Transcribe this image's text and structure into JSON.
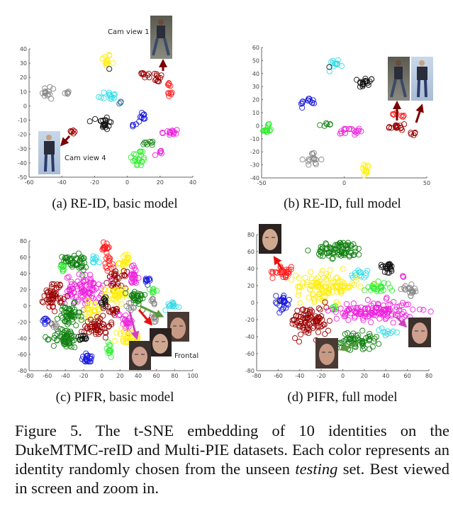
{
  "captions": {
    "a": "(a) RE-ID, basic model",
    "b": "(b) RE-ID, full model",
    "c": "(c) PIFR, basic model",
    "d": "(d) PIFR, full model"
  },
  "figure_caption": {
    "part1": "Figure 5. The t-SNE embedding of 10 identities on the DukeMTMC-reID and Multi-PIE datasets. Each color represents an identity randomly chosen from the unseen ",
    "italic": "testing",
    "part2": " set. Best viewed in screen and zoom in."
  },
  "annotations": {
    "cam_view_1": "Cam view 1",
    "cam_view_4": "Cam view 4",
    "frontal": "Frontal"
  },
  "colors": {
    "red": "#ff2020",
    "darkred": "#9b0000",
    "black": "#111111",
    "gray": "#888888",
    "cyan": "#33dde8",
    "yellow": "#ffee11",
    "blue": "#1a1ae0",
    "magenta": "#ee22dd",
    "darkgreen": "#108010",
    "lime": "#33ee33",
    "steelblue": "#2a6f9a"
  },
  "chart_data": [
    {
      "id": "a",
      "type": "scatter",
      "title": "RE-ID, basic model",
      "xlim": [
        -60,
        40
      ],
      "ylim": [
        -50,
        40
      ],
      "xticks": [
        -60,
        -40,
        -20,
        0,
        20,
        40
      ],
      "yticks": [
        -50,
        -40,
        -30,
        -20,
        -10,
        0,
        10,
        20,
        30,
        40
      ],
      "clusters": [
        {
          "color": "yellow",
          "x": -13,
          "y": 32,
          "sx": 1.5,
          "sy": 2.5,
          "n": 12
        },
        {
          "color": "black",
          "x": -11,
          "y": 26,
          "sx": 0,
          "sy": 0,
          "n": 1
        },
        {
          "color": "darkred",
          "x": 10,
          "y": 22,
          "sx": 2.5,
          "sy": 1.2,
          "n": 8
        },
        {
          "color": "darkred",
          "x": 18,
          "y": 19,
          "sx": 2.5,
          "sy": 2.5,
          "n": 12
        },
        {
          "color": "red",
          "x": 26,
          "y": 16,
          "sx": 0.8,
          "sy": 1.2,
          "n": 5
        },
        {
          "color": "red",
          "x": 26,
          "y": 8,
          "sx": 0.8,
          "sy": 1,
          "n": 6
        },
        {
          "color": "gray",
          "x": -47,
          "y": 9,
          "sx": 2.5,
          "sy": 2.5,
          "n": 14
        },
        {
          "color": "gray",
          "x": -37,
          "y": 9.5,
          "sx": 1.8,
          "sy": 0.6,
          "n": 5
        },
        {
          "color": "cyan",
          "x": -12,
          "y": 7,
          "sx": 3,
          "sy": 1.8,
          "n": 14
        },
        {
          "color": "steelblue",
          "x": -4,
          "y": 2,
          "sx": 0.8,
          "sy": 0.8,
          "n": 3
        },
        {
          "color": "black",
          "x": -14,
          "y": -12,
          "sx": 2.2,
          "sy": 2.5,
          "n": 22
        },
        {
          "color": "blue",
          "x": 9,
          "y": -8,
          "sx": 1.5,
          "sy": 2.2,
          "n": 11
        },
        {
          "color": "blue",
          "x": 4,
          "y": -13,
          "sx": 0.6,
          "sy": 0.8,
          "n": 4
        },
        {
          "color": "magenta",
          "x": 26,
          "y": -19,
          "sx": 3,
          "sy": 1.6,
          "n": 15
        },
        {
          "color": "magenta",
          "x": 20.5,
          "y": -32,
          "sx": 0.8,
          "sy": 1,
          "n": 5
        },
        {
          "color": "magenta",
          "x": 17,
          "y": -34.5,
          "sx": 0,
          "sy": 0,
          "n": 1
        },
        {
          "color": "darkgreen",
          "x": 13,
          "y": -26,
          "sx": 2.8,
          "sy": 0.8,
          "n": 8
        },
        {
          "color": "lime",
          "x": 7,
          "y": -37,
          "sx": 2.2,
          "sy": 3.5,
          "n": 22
        },
        {
          "color": "darkred",
          "x": -33,
          "y": -18,
          "sx": 1,
          "sy": 1,
          "n": 6
        }
      ]
    },
    {
      "id": "b",
      "type": "scatter",
      "title": "RE-ID, full model",
      "xlim": [
        -50,
        50
      ],
      "ylim": [
        -40,
        60
      ],
      "xticks": [
        -50,
        0,
        50
      ],
      "yticks": [
        -40,
        -30,
        -20,
        -10,
        0,
        10,
        20,
        30,
        40,
        50,
        60
      ],
      "clusters": [
        {
          "color": "cyan",
          "x": -5,
          "y": 48,
          "sx": 2.5,
          "sy": 1.5,
          "n": 12
        },
        {
          "color": "black",
          "x": -9,
          "y": 45,
          "sx": 0,
          "sy": 0,
          "n": 1
        },
        {
          "color": "black",
          "x": 13,
          "y": 33,
          "sx": 2.2,
          "sy": 2.2,
          "n": 18
        },
        {
          "color": "blue",
          "x": -22,
          "y": 18,
          "sx": 2.2,
          "sy": 1.8,
          "n": 14
        },
        {
          "color": "lime",
          "x": -47,
          "y": -3,
          "sx": 1.8,
          "sy": 1.8,
          "n": 16
        },
        {
          "color": "darkgreen",
          "x": -11,
          "y": 1,
          "sx": 1.5,
          "sy": 0.6,
          "n": 6
        },
        {
          "color": "magenta",
          "x": 5,
          "y": -4,
          "sx": 2.2,
          "sy": 1.5,
          "n": 14
        },
        {
          "color": "magenta",
          "x": -2,
          "y": -5,
          "sx": 1.5,
          "sy": 0.8,
          "n": 5
        },
        {
          "color": "darkred",
          "x": 32,
          "y": -1,
          "sx": 2.8,
          "sy": 2.2,
          "n": 16
        },
        {
          "color": "red",
          "x": 31,
          "y": 9,
          "sx": 0.8,
          "sy": 0.8,
          "n": 4
        },
        {
          "color": "red",
          "x": 36,
          "y": 8,
          "sx": 0.8,
          "sy": 0.8,
          "n": 4
        },
        {
          "color": "darkred",
          "x": 42,
          "y": -6,
          "sx": 0.8,
          "sy": 1.5,
          "n": 5
        },
        {
          "color": "gray",
          "x": -19,
          "y": -26,
          "sx": 2.5,
          "sy": 2.5,
          "n": 16
        },
        {
          "color": "yellow",
          "x": 13,
          "y": -33,
          "sx": 1.3,
          "sy": 2.2,
          "n": 12
        }
      ]
    },
    {
      "id": "c",
      "type": "scatter",
      "title": "PIFR, basic model",
      "xlim": [
        -80,
        100
      ],
      "ylim": [
        -80,
        80
      ],
      "xticks": [
        -80,
        -60,
        -40,
        -20,
        0,
        20,
        40,
        60,
        80,
        100
      ],
      "yticks": [
        -80,
        -60,
        -40,
        -20,
        0,
        20,
        40,
        60,
        80
      ],
      "clusters": [
        {
          "color": "red",
          "x": 4,
          "y": 72,
          "sx": 2.5,
          "sy": 3.5,
          "n": 15
        },
        {
          "color": "red",
          "x": 9,
          "y": 55,
          "sx": 2.5,
          "sy": 6,
          "n": 15
        },
        {
          "color": "darkgreen",
          "x": -38,
          "y": 56,
          "sx": 4,
          "sy": 3,
          "n": 22
        },
        {
          "color": "darkgreen",
          "x": -25,
          "y": 52,
          "sx": 4,
          "sy": 5,
          "n": 25
        },
        {
          "color": "lime",
          "x": -43,
          "y": 46,
          "sx": 2,
          "sy": 3,
          "n": 10
        },
        {
          "color": "cyan",
          "x": -8,
          "y": 57,
          "sx": 1.8,
          "sy": 3,
          "n": 8
        },
        {
          "color": "yellow",
          "x": 25,
          "y": 54,
          "sx": 3,
          "sy": 5,
          "n": 22
        },
        {
          "color": "darkred",
          "x": 17,
          "y": 32,
          "sx": 5,
          "sy": 5,
          "n": 30
        },
        {
          "color": "magenta",
          "x": 35,
          "y": 36,
          "sx": 3,
          "sy": 7,
          "n": 25
        },
        {
          "color": "blue",
          "x": 51,
          "y": 30,
          "sx": 2.5,
          "sy": 2.5,
          "n": 10
        },
        {
          "color": "magenta",
          "x": -20,
          "y": 20,
          "sx": 10,
          "sy": 9,
          "n": 90
        },
        {
          "color": "darkred",
          "x": -53,
          "y": 13,
          "sx": 5,
          "sy": 9,
          "n": 50
        },
        {
          "color": "lime",
          "x": 56,
          "y": 19,
          "sx": 1.5,
          "sy": 2,
          "n": 8
        },
        {
          "color": "yellow",
          "x": 15,
          "y": 12,
          "sx": 6,
          "sy": 5,
          "n": 40
        },
        {
          "color": "darkgreen",
          "x": 38,
          "y": 10,
          "sx": 5,
          "sy": 5,
          "n": 30
        },
        {
          "color": "black",
          "x": 2,
          "y": 4,
          "sx": 3,
          "sy": 3,
          "n": 12
        },
        {
          "color": "gray",
          "x": 57,
          "y": 5,
          "sx": 2,
          "sy": 2,
          "n": 8
        },
        {
          "color": "cyan",
          "x": 77,
          "y": 1,
          "sx": 4,
          "sy": 3,
          "n": 14
        },
        {
          "color": "yellow",
          "x": -10,
          "y": -5,
          "sx": 5,
          "sy": 5,
          "n": 25
        },
        {
          "color": "darkgreen",
          "x": -36,
          "y": -13,
          "sx": 6,
          "sy": 7,
          "n": 50
        },
        {
          "color": "darkred",
          "x": 12,
          "y": -6,
          "sx": 4,
          "sy": 3,
          "n": 15
        },
        {
          "color": "magenta",
          "x": 26,
          "y": -18,
          "sx": 4,
          "sy": 6,
          "n": 20
        },
        {
          "color": "darkred",
          "x": -5,
          "y": -25,
          "sx": 7,
          "sy": 7,
          "n": 50
        },
        {
          "color": "blue",
          "x": -61,
          "y": -18,
          "sx": 2,
          "sy": 2,
          "n": 8
        },
        {
          "color": "gray",
          "x": -50,
          "y": -26,
          "sx": 2,
          "sy": 2,
          "n": 6
        },
        {
          "color": "darkgreen",
          "x": -40,
          "y": -40,
          "sx": 7,
          "sy": 6,
          "n": 60
        },
        {
          "color": "black",
          "x": -20,
          "y": -41,
          "sx": 2.5,
          "sy": 2.5,
          "n": 10
        },
        {
          "color": "yellow",
          "x": 30,
          "y": -40,
          "sx": 7,
          "sy": 6,
          "n": 35
        },
        {
          "color": "lime",
          "x": 8,
          "y": -55,
          "sx": 2,
          "sy": 5,
          "n": 12
        },
        {
          "color": "blue",
          "x": -15,
          "y": -65,
          "sx": 4,
          "sy": 3,
          "n": 20
        },
        {
          "color": "gray",
          "x": 58,
          "y": -15,
          "sx": 2.5,
          "sy": 3,
          "n": 10
        },
        {
          "color": "gray",
          "x": 32,
          "y": 0,
          "sx": 2,
          "sy": 3,
          "n": 8
        }
      ]
    },
    {
      "id": "d",
      "type": "scatter",
      "title": "PIFR, full model",
      "xlim": [
        -80,
        80
      ],
      "ylim": [
        -80,
        80
      ],
      "xticks": [
        -80,
        -60,
        -40,
        -20,
        0,
        20,
        40,
        60,
        80
      ],
      "yticks": [
        -80,
        -60,
        -40,
        -20,
        0,
        20,
        40,
        60,
        80
      ],
      "clusters": [
        {
          "color": "darkgreen",
          "x": -3,
          "y": 62,
          "sx": 11,
          "sy": 5,
          "n": 80
        },
        {
          "color": "red",
          "x": -55,
          "y": 36,
          "sx": 5,
          "sy": 3,
          "n": 30
        },
        {
          "color": "black",
          "x": 42,
          "y": 42,
          "sx": 3.5,
          "sy": 3,
          "n": 22
        },
        {
          "color": "magenta",
          "x": 56,
          "y": 31,
          "sx": 1,
          "sy": 1,
          "n": 4
        },
        {
          "color": "cyan",
          "x": 15,
          "y": 33,
          "sx": 4,
          "sy": 3,
          "n": 15
        },
        {
          "color": "yellow",
          "x": -15,
          "y": 19,
          "sx": 14,
          "sy": 8,
          "n": 120
        },
        {
          "color": "lime",
          "x": 32,
          "y": 18,
          "sx": 6,
          "sy": 3,
          "n": 25
        },
        {
          "color": "gray",
          "x": 63,
          "y": 14,
          "sx": 4,
          "sy": 3,
          "n": 20
        },
        {
          "color": "blue",
          "x": -57,
          "y": 0,
          "sx": 4,
          "sy": 5,
          "n": 25
        },
        {
          "color": "lime",
          "x": -8,
          "y": -7,
          "sx": 1.5,
          "sy": 1.5,
          "n": 6
        },
        {
          "color": "magenta",
          "x": 30,
          "y": -10,
          "sx": 18,
          "sy": 6,
          "n": 130
        },
        {
          "color": "darkred",
          "x": -30,
          "y": -22,
          "sx": 9,
          "sy": 9,
          "n": 90
        },
        {
          "color": "cyan",
          "x": 40,
          "y": -35,
          "sx": 4,
          "sy": 2,
          "n": 10
        },
        {
          "color": "darkgreen",
          "x": 12,
          "y": -45,
          "sx": 10,
          "sy": 5,
          "n": 60
        }
      ]
    }
  ]
}
